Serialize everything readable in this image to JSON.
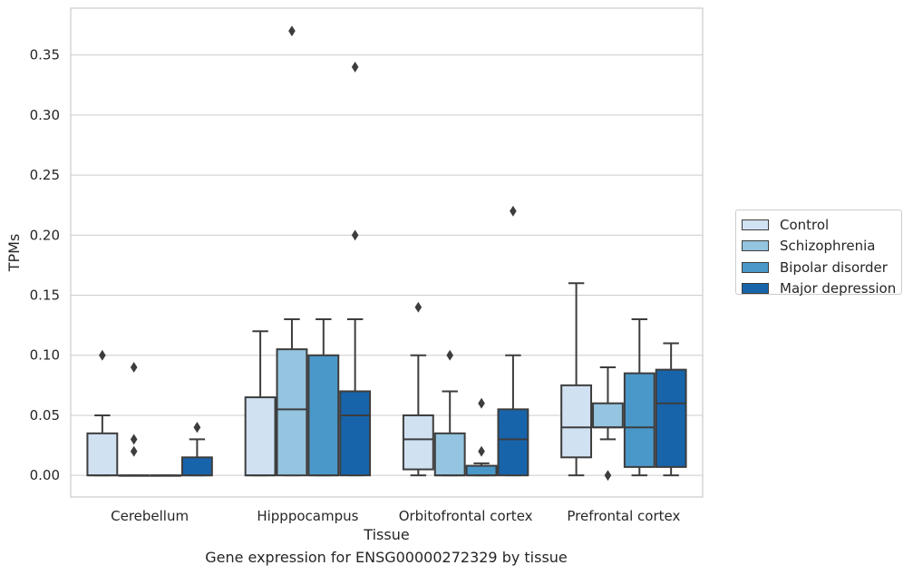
{
  "chart_data": {
    "type": "box",
    "title": "",
    "xlabel": "Tissue",
    "ylabel": "TPMs",
    "caption": "Gene expression for ENSG00000272329 by tissue",
    "ylim": [
      -0.018,
      0.389
    ],
    "yticks": [
      "0.00",
      "0.05",
      "0.10",
      "0.15",
      "0.20",
      "0.25",
      "0.30",
      "0.35"
    ],
    "categories": [
      "Cerebellum",
      "Hipppocampus",
      "Orbitofrontal cortex",
      "Prefrontal cortex"
    ],
    "grid": "horizontal",
    "legend_position": "right",
    "series": [
      {
        "name": "Control",
        "color": "#d0e1f2",
        "boxes": [
          {
            "whislo": 0,
            "q1": 0,
            "med": 0,
            "q3": 0.035,
            "whishi": 0.05,
            "fliers": [
              0.1
            ]
          },
          {
            "whislo": 0,
            "q1": 0,
            "med": 0,
            "q3": 0.065,
            "whishi": 0.12,
            "fliers": []
          },
          {
            "whislo": 0,
            "q1": 0.005,
            "med": 0.03,
            "q3": 0.05,
            "whishi": 0.1,
            "fliers": [
              0.14
            ]
          },
          {
            "whislo": 0,
            "q1": 0.015,
            "med": 0.04,
            "q3": 0.075,
            "whishi": 0.16,
            "fliers": []
          }
        ]
      },
      {
        "name": "Schizophrenia",
        "color": "#94c4df",
        "boxes": [
          {
            "whislo": 0,
            "q1": 0,
            "med": 0,
            "q3": 0,
            "whishi": 0,
            "fliers": [
              0.02,
              0.03,
              0.09
            ]
          },
          {
            "whislo": 0,
            "q1": 0,
            "med": 0.055,
            "q3": 0.105,
            "whishi": 0.13,
            "fliers": [
              0.37
            ]
          },
          {
            "whislo": 0,
            "q1": 0,
            "med": 0,
            "q3": 0.035,
            "whishi": 0.07,
            "fliers": [
              0.1
            ]
          },
          {
            "whislo": 0.03,
            "q1": 0.04,
            "med": 0.04,
            "q3": 0.06,
            "whishi": 0.09,
            "fliers": [
              0.0
            ]
          }
        ]
      },
      {
        "name": "Bipolar disorder",
        "color": "#4a98c9",
        "boxes": [
          {
            "whislo": 0,
            "q1": 0,
            "med": 0,
            "q3": 0,
            "whishi": 0,
            "fliers": []
          },
          {
            "whislo": 0,
            "q1": 0,
            "med": 0,
            "q3": 0.1,
            "whishi": 0.13,
            "fliers": []
          },
          {
            "whislo": 0,
            "q1": 0,
            "med": 0,
            "q3": 0.008,
            "whishi": 0.01,
            "fliers": [
              0.02,
              0.06
            ]
          },
          {
            "whislo": 0,
            "q1": 0.007,
            "med": 0.04,
            "q3": 0.085,
            "whishi": 0.13,
            "fliers": []
          }
        ]
      },
      {
        "name": "Major depression",
        "color": "#1764ab",
        "boxes": [
          {
            "whislo": 0,
            "q1": 0,
            "med": 0,
            "q3": 0.015,
            "whishi": 0.03,
            "fliers": [
              0.04,
              0.04
            ]
          },
          {
            "whislo": 0,
            "q1": 0,
            "med": 0.05,
            "q3": 0.07,
            "whishi": 0.13,
            "fliers": [
              0.2,
              0.34
            ]
          },
          {
            "whislo": 0,
            "q1": 0,
            "med": 0.03,
            "q3": 0.055,
            "whishi": 0.1,
            "fliers": [
              0.22
            ]
          },
          {
            "whislo": 0,
            "q1": 0.007,
            "med": 0.06,
            "q3": 0.088,
            "whishi": 0.11,
            "fliers": []
          }
        ]
      }
    ]
  }
}
